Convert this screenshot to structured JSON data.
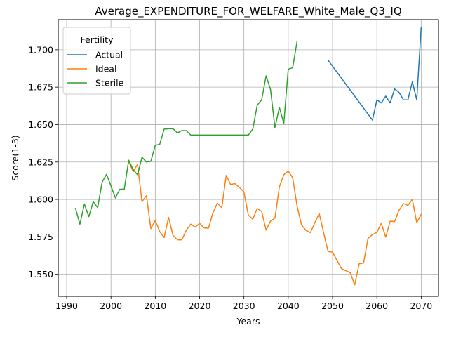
{
  "chart_data": {
    "type": "line",
    "title": "Average_EXPENDITURE_FOR_WELFARE_White_Male_Q3_IQ",
    "xlabel": "Years",
    "ylabel": "Score(1-3)",
    "xlim": [
      1988.1,
      2073.9
    ],
    "ylim": [
      1.5353,
      1.7201
    ],
    "xticks": [
      1990,
      2000,
      2010,
      2020,
      2030,
      2040,
      2050,
      2060,
      2070
    ],
    "yticks": [
      1.55,
      1.575,
      1.6,
      1.625,
      1.65,
      1.675,
      1.7
    ],
    "ytick_labels": [
      "1.550",
      "1.575",
      "1.600",
      "1.625",
      "1.650",
      "1.675",
      "1.700"
    ],
    "grid": true,
    "legend": {
      "title": "Fertility",
      "placement": "top-left"
    },
    "series": [
      {
        "name": "Actual",
        "color": "#1f77b4",
        "x": [
          2049,
          2059,
          2060,
          2061,
          2062,
          2063,
          2064,
          2065,
          2066,
          2067,
          2068,
          2069,
          2070
        ],
        "y": [
          1.693,
          1.653,
          1.6665,
          1.6645,
          1.669,
          1.6645,
          1.6738,
          1.6715,
          1.6665,
          1.6665,
          1.6785,
          1.6665,
          1.715
        ]
      },
      {
        "name": "Ideal",
        "color": "#ff7f0e",
        "x": [
          2004,
          2005,
          2006,
          2007,
          2008,
          2009,
          2010,
          2011,
          2012,
          2013,
          2014,
          2015,
          2016,
          2017,
          2018,
          2019,
          2020,
          2021,
          2022,
          2023,
          2024,
          2025,
          2026,
          2027,
          2028,
          2029,
          2030,
          2031,
          2032,
          2033,
          2034,
          2035,
          2036,
          2037,
          2038,
          2039,
          2040,
          2041,
          2042,
          2043,
          2044,
          2045,
          2046,
          2047,
          2048,
          2049,
          2050,
          2052,
          2054,
          2055,
          2056,
          2057,
          2058,
          2059,
          2060,
          2061,
          2062,
          2063,
          2064,
          2065,
          2066,
          2067,
          2068,
          2069,
          2070
        ],
        "y": [
          1.6255,
          1.6185,
          1.6235,
          1.5985,
          1.6025,
          1.5805,
          1.586,
          1.5785,
          1.5745,
          1.588,
          1.576,
          1.573,
          1.573,
          1.5795,
          1.5835,
          1.5815,
          1.584,
          1.581,
          1.5808,
          1.591,
          1.5975,
          1.5945,
          1.616,
          1.61,
          1.6105,
          1.608,
          1.605,
          1.5895,
          1.5868,
          1.594,
          1.592,
          1.5795,
          1.5855,
          1.5875,
          1.6085,
          1.6165,
          1.619,
          1.6145,
          1.5955,
          1.583,
          1.5793,
          1.5778,
          1.5845,
          1.5905,
          1.5775,
          1.5652,
          1.5648,
          1.5538,
          1.551,
          1.543,
          1.557,
          1.5575,
          1.574,
          1.5765,
          1.578,
          1.584,
          1.5748,
          1.5855,
          1.5852,
          1.5928,
          1.5972,
          1.596,
          1.6,
          1.5845,
          1.59
        ]
      },
      {
        "name": "Sterile",
        "color": "#2ca02c",
        "x": [
          1992,
          1993,
          1994,
          1995,
          1996,
          1997,
          1998,
          1999,
          2000,
          2001,
          2002,
          2003,
          2004,
          2005,
          2006,
          2007,
          2008,
          2009,
          2010,
          2011,
          2012,
          2013,
          2014,
          2015,
          2016,
          2017,
          2018,
          2019,
          2020,
          2021,
          2022,
          2023,
          2024,
          2025,
          2026,
          2027,
          2028,
          2029,
          2030,
          2031,
          2032,
          2033,
          2034,
          2035,
          2036,
          2037,
          2038,
          2039,
          2040,
          2041,
          2042
        ],
        "y": [
          1.594,
          1.5835,
          1.597,
          1.5885,
          1.5985,
          1.5945,
          1.6115,
          1.6168,
          1.609,
          1.601,
          1.6068,
          1.6068,
          1.6262,
          1.62,
          1.6165,
          1.6282,
          1.625,
          1.6255,
          1.6362,
          1.6368,
          1.647,
          1.6472,
          1.6472,
          1.6445,
          1.646,
          1.646,
          1.643,
          1.643,
          1.643,
          1.643,
          1.643,
          1.643,
          1.643,
          1.643,
          1.643,
          1.643,
          1.643,
          1.643,
          1.643,
          1.643,
          1.647,
          1.663,
          1.6665,
          1.6825,
          1.6735,
          1.648,
          1.6615,
          1.6508,
          1.687,
          1.688,
          1.7058
        ]
      }
    ]
  }
}
